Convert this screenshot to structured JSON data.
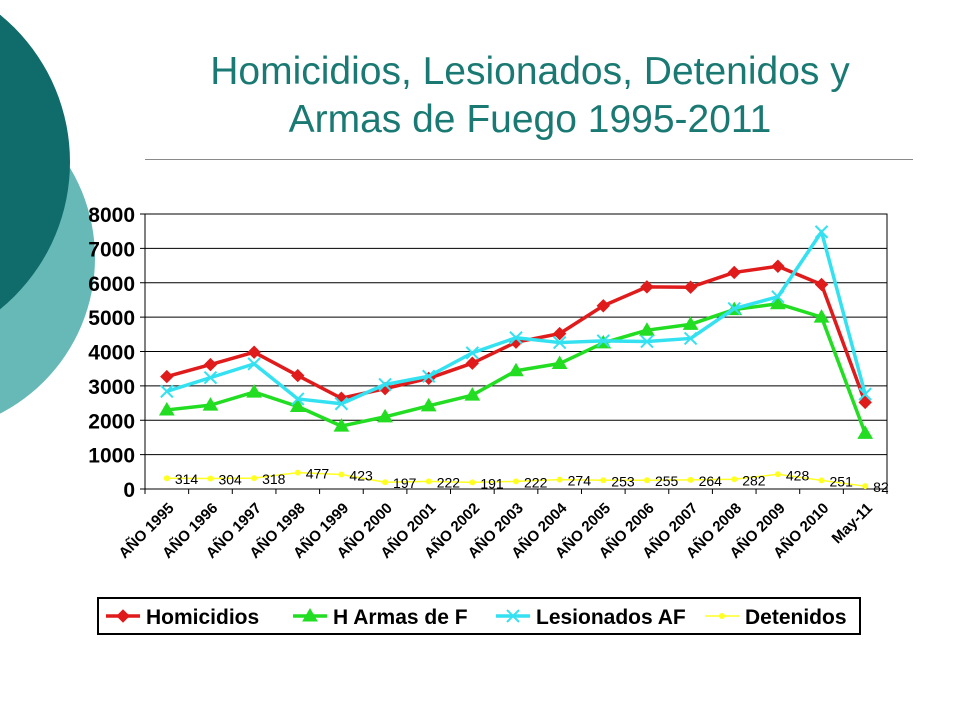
{
  "slide": {
    "title_line1": "Homicidios, Lesionados, Detenidos y",
    "title_line2": "Armas de Fuego 1995-2011",
    "colors": {
      "title": "#1a7a73",
      "circle_dark": "#0f6c6a",
      "circle_light": "#66b9b6"
    }
  },
  "chart_data": {
    "type": "line",
    "title": "",
    "xlabel": "",
    "ylabel": "",
    "ylim": [
      0,
      8000
    ],
    "yticks": [
      "0",
      "1000",
      "2000",
      "3000",
      "4000",
      "5000",
      "6000",
      "7000",
      "8000"
    ],
    "grid": true,
    "legend_position": "bottom",
    "categories": [
      "AÑO 1995",
      "AÑO 1996",
      "AÑO 1997",
      "AÑO 1998",
      "AÑO 1999",
      "AÑO 2000",
      "AÑO 2001",
      "AÑO 2002",
      "AÑO 2003",
      "AÑO 2004",
      "AÑO 2005",
      "AÑO 2006",
      "AÑO 2007",
      "AÑO 2008",
      "AÑO 2009",
      "AÑO 2010",
      "May-11"
    ],
    "series": [
      {
        "name": "Homicidios",
        "color": "#e01b1b",
        "marker": "diamond",
        "values": [
          3270,
          3620,
          3980,
          3300,
          2640,
          2920,
          3220,
          3660,
          4270,
          4520,
          5330,
          5880,
          5870,
          6300,
          6480,
          5950,
          2520
        ]
      },
      {
        "name": "H Armas de F",
        "color": "#22dd22",
        "marker": "triangle",
        "values": [
          2300,
          2440,
          2820,
          2400,
          1830,
          2100,
          2420,
          2730,
          3440,
          3650,
          4250,
          4620,
          4790,
          5220,
          5390,
          5000,
          1620
        ]
      },
      {
        "name": "Lesionados AF",
        "color": "#33e1f0",
        "marker": "x",
        "values": [
          2840,
          3240,
          3640,
          2620,
          2480,
          3040,
          3280,
          3960,
          4400,
          4260,
          4310,
          4290,
          4380,
          5250,
          5590,
          7480,
          2760
        ]
      },
      {
        "name": "Detenidos",
        "color": "#ffff22",
        "marker": "dot",
        "values": [
          314,
          304,
          318,
          477,
          423,
          197,
          222,
          191,
          222,
          274,
          253,
          255,
          264,
          282,
          428,
          251,
          82
        ],
        "labels": [
          "314",
          "304",
          "318",
          "477",
          "423",
          "197",
          "222",
          "191",
          "222",
          "274",
          "253",
          "255",
          "264",
          "282",
          "428",
          "251",
          "82"
        ]
      }
    ]
  }
}
